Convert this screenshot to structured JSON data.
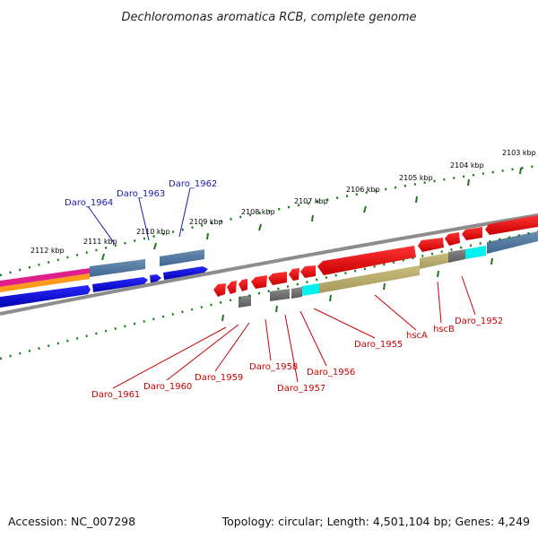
{
  "title": "Dechloromonas aromatica RCB, complete genome",
  "footer": {
    "accession": "Accession: NC_007298",
    "topology": "Topology: circular; Length: 4,501,104 bp; Genes: 4,249"
  },
  "colors": {
    "upper_label": "#1a1ab0",
    "lower_label": "#cc0000",
    "scale": "#1a7a1a"
  },
  "ticks": [
    "2112 kbp",
    "2111 kbp",
    "2110 kbp",
    "2109 kbp",
    "2108 kbp",
    "2107 kbp",
    "2106 kbp",
    "2105 kbp",
    "2104 kbp",
    "2103 kbp"
  ],
  "upper_labels": [
    "Daro_1964",
    "Daro_1963",
    "Daro_1962"
  ],
  "lower_labels": [
    "Daro_1961",
    "Daro_1960",
    "Daro_1959",
    "Daro_1958",
    "Daro_1957",
    "Daro_1956",
    "Daro_1955",
    "hscA",
    "hscB",
    "Daro_1952"
  ]
}
